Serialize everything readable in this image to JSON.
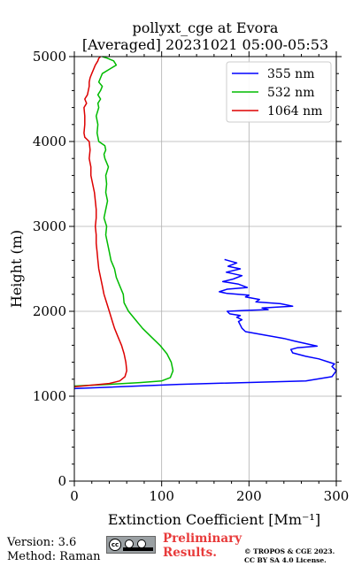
{
  "title": {
    "line1": "pollyxt_cge at Evora",
    "line2": "[Averaged] 20231021 05:00-05:53"
  },
  "chart_data": {
    "type": "line",
    "title": "pollyxt_cge at Evora [Averaged] 20231021 05:00-05:53",
    "xlabel": "Extinction Coefficient [Mm⁻¹]",
    "ylabel": "Height (m)",
    "xlim": [
      0,
      300
    ],
    "ylim": [
      0,
      5000
    ],
    "xticks": [
      0,
      100,
      200,
      300
    ],
    "yticks": [
      0,
      1000,
      2000,
      3000,
      4000,
      5000
    ],
    "grid": true,
    "legend": "top-right",
    "series": [
      {
        "name": "355 nm",
        "color": "#0000ff",
        "x": [
          0,
          120,
          265,
          295,
          300,
          295,
          298,
          292,
          280,
          265,
          250,
          248,
          255,
          278,
          265,
          252,
          240,
          218,
          196,
          192,
          190,
          188,
          192,
          186,
          190,
          178,
          175,
          196,
          222,
          215,
          232,
          250,
          236,
          208,
          212,
          196,
          200,
          175,
          166,
          175,
          198,
          188,
          170,
          182,
          192,
          174,
          190,
          176,
          186,
          172
        ],
        "y": [
          1090,
          1140,
          1180,
          1230,
          1300,
          1350,
          1380,
          1400,
          1440,
          1470,
          1510,
          1550,
          1570,
          1590,
          1620,
          1650,
          1680,
          1720,
          1760,
          1800,
          1840,
          1880,
          1900,
          1930,
          1950,
          1970,
          2000,
          2010,
          2020,
          2040,
          2050,
          2060,
          2090,
          2110,
          2140,
          2170,
          2190,
          2210,
          2230,
          2260,
          2280,
          2320,
          2350,
          2380,
          2420,
          2460,
          2500,
          2530,
          2570,
          2610
        ]
      },
      {
        "name": "532 nm",
        "color": "#00bb00",
        "x": [
          0,
          40,
          75,
          100,
          110,
          113,
          111,
          106,
          98,
          88,
          78,
          70,
          62,
          57,
          56,
          52,
          48,
          46,
          42,
          40,
          38,
          36,
          37,
          34,
          36,
          38,
          36,
          37,
          36,
          39,
          35,
          34,
          36,
          35,
          28,
          26,
          27,
          25,
          28,
          27,
          30,
          27,
          30,
          32,
          28,
          30,
          32,
          40,
          48,
          45,
          38,
          32
        ],
        "y": [
          1120,
          1140,
          1160,
          1180,
          1220,
          1300,
          1400,
          1500,
          1600,
          1700,
          1800,
          1900,
          2000,
          2100,
          2200,
          2300,
          2400,
          2500,
          2600,
          2700,
          2800,
          2900,
          3000,
          3100,
          3200,
          3300,
          3400,
          3500,
          3600,
          3700,
          3800,
          3850,
          3900,
          3950,
          4000,
          4100,
          4200,
          4300,
          4400,
          4450,
          4500,
          4550,
          4600,
          4650,
          4700,
          4750,
          4800,
          4850,
          4900,
          4950,
          4980,
          5000
        ]
      },
      {
        "name": "1064 nm",
        "color": "#dd0000",
        "x": [
          0,
          20,
          40,
          52,
          58,
          60,
          59,
          57,
          54,
          50,
          46,
          43,
          40,
          37,
          34,
          32,
          30,
          28,
          27,
          26,
          25,
          25,
          24,
          25,
          25,
          24,
          23,
          21,
          19,
          19,
          17,
          18,
          17,
          12,
          11,
          12,
          12,
          11,
          14,
          12,
          15,
          16,
          17,
          17,
          18,
          20,
          22,
          24,
          27,
          28,
          30
        ],
        "y": [
          1110,
          1130,
          1150,
          1180,
          1230,
          1300,
          1400,
          1500,
          1600,
          1700,
          1800,
          1900,
          2000,
          2100,
          2200,
          2300,
          2400,
          2500,
          2600,
          2700,
          2800,
          2900,
          3000,
          3100,
          3200,
          3300,
          3400,
          3500,
          3600,
          3700,
          3800,
          3900,
          4000,
          4050,
          4100,
          4200,
          4300,
          4400,
          4450,
          4500,
          4550,
          4600,
          4650,
          4700,
          4750,
          4800,
          4850,
          4900,
          4950,
          4980,
          5000
        ]
      }
    ]
  },
  "footer": {
    "version": "Version: 3.6",
    "method": "Method: Raman",
    "preliminary_line1": "Preliminary",
    "preliminary_line2": "Results.",
    "copyright_line1": "© TROPOS & CGE 2023.",
    "copyright_line2": "CC BY SA 4.0 License.",
    "badge_icon": "cc-by-sa-icon"
  }
}
